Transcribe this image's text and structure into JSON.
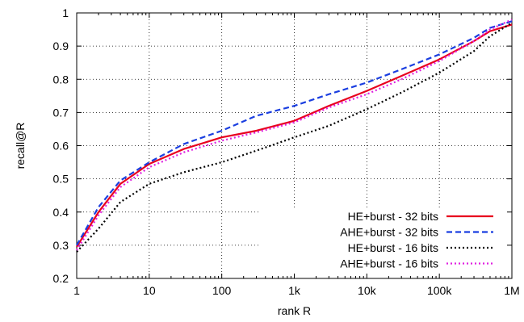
{
  "chart_data": {
    "type": "line",
    "title": "",
    "xlabel": "rank R",
    "ylabel": "recall@R",
    "x_scale": "log",
    "xlim": [
      1,
      1000000
    ],
    "ylim": [
      0.2,
      1.0
    ],
    "grid": true,
    "legend_position": "bottom-right",
    "x_ticks": [
      {
        "value": 1,
        "label": "1"
      },
      {
        "value": 10,
        "label": "10"
      },
      {
        "value": 100,
        "label": "100"
      },
      {
        "value": 1000,
        "label": "1k"
      },
      {
        "value": 10000,
        "label": "10k"
      },
      {
        "value": 100000,
        "label": "100k"
      },
      {
        "value": 1000000,
        "label": "1M"
      }
    ],
    "y_ticks": [
      {
        "value": 0.2,
        "label": "0.2"
      },
      {
        "value": 0.3,
        "label": "0.3"
      },
      {
        "value": 0.4,
        "label": "0.4"
      },
      {
        "value": 0.5,
        "label": "0.5"
      },
      {
        "value": 0.6,
        "label": "0.6"
      },
      {
        "value": 0.7,
        "label": "0.7"
      },
      {
        "value": 0.8,
        "label": "0.8"
      },
      {
        "value": 0.9,
        "label": "0.9"
      },
      {
        "value": 1.0,
        "label": "1"
      }
    ],
    "series": [
      {
        "name": "HE+burst - 32 bits",
        "color": "#e8001e",
        "dash": "solid",
        "points": [
          [
            1,
            0.295
          ],
          [
            2,
            0.4
          ],
          [
            4,
            0.485
          ],
          [
            10,
            0.545
          ],
          [
            30,
            0.59
          ],
          [
            100,
            0.625
          ],
          [
            300,
            0.645
          ],
          [
            1000,
            0.675
          ],
          [
            3000,
            0.72
          ],
          [
            10000,
            0.765
          ],
          [
            30000,
            0.81
          ],
          [
            100000,
            0.86
          ],
          [
            300000,
            0.915
          ],
          [
            500000,
            0.945
          ],
          [
            1000000,
            0.965
          ]
        ]
      },
      {
        "name": "AHE+burst - 32 bits",
        "color": "#1a3ee0",
        "dash": "dashed",
        "points": [
          [
            1,
            0.3
          ],
          [
            2,
            0.415
          ],
          [
            4,
            0.495
          ],
          [
            10,
            0.55
          ],
          [
            30,
            0.605
          ],
          [
            100,
            0.645
          ],
          [
            300,
            0.69
          ],
          [
            1000,
            0.72
          ],
          [
            3000,
            0.755
          ],
          [
            10000,
            0.79
          ],
          [
            30000,
            0.83
          ],
          [
            100000,
            0.875
          ],
          [
            300000,
            0.925
          ],
          [
            500000,
            0.955
          ],
          [
            1000000,
            0.975
          ]
        ]
      },
      {
        "name": "HE+burst - 16 bits",
        "color": "#000000",
        "dash": "dotted",
        "points": [
          [
            1,
            0.28
          ],
          [
            2,
            0.35
          ],
          [
            4,
            0.43
          ],
          [
            10,
            0.485
          ],
          [
            30,
            0.52
          ],
          [
            100,
            0.55
          ],
          [
            300,
            0.585
          ],
          [
            1000,
            0.625
          ],
          [
            3000,
            0.66
          ],
          [
            10000,
            0.71
          ],
          [
            30000,
            0.76
          ],
          [
            100000,
            0.82
          ],
          [
            300000,
            0.885
          ],
          [
            500000,
            0.93
          ],
          [
            1000000,
            0.97
          ]
        ]
      },
      {
        "name": "AHE+burst - 16 bits",
        "color": "#e020e0",
        "dash": "dotted",
        "points": [
          [
            1,
            0.285
          ],
          [
            2,
            0.39
          ],
          [
            4,
            0.475
          ],
          [
            10,
            0.535
          ],
          [
            30,
            0.58
          ],
          [
            100,
            0.615
          ],
          [
            300,
            0.64
          ],
          [
            1000,
            0.67
          ],
          [
            3000,
            0.715
          ],
          [
            10000,
            0.755
          ],
          [
            30000,
            0.8
          ],
          [
            100000,
            0.855
          ],
          [
            300000,
            0.915
          ],
          [
            500000,
            0.95
          ],
          [
            1000000,
            0.98
          ]
        ]
      }
    ]
  }
}
